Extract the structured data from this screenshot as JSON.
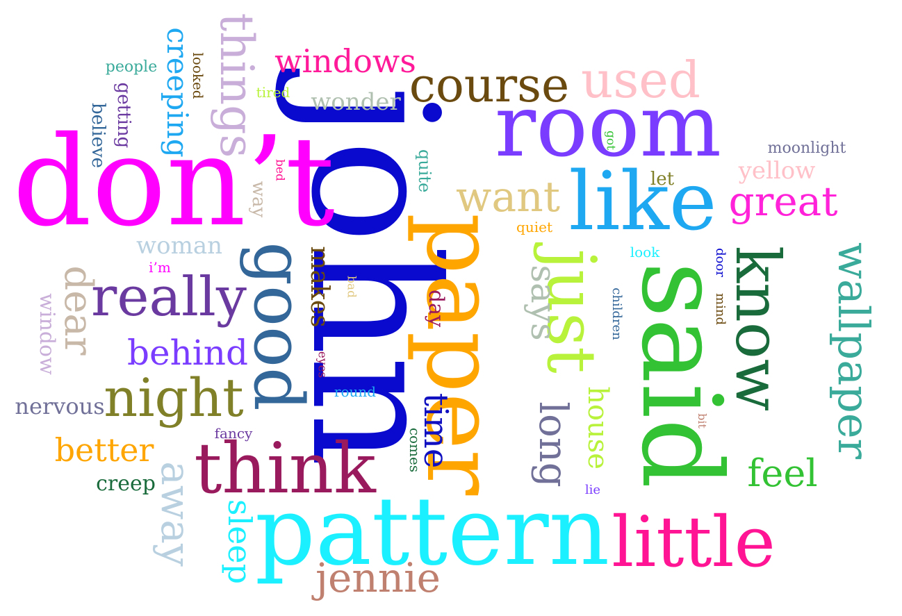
{
  "words": [
    {
      "text": "john",
      "color": "#0a0acf",
      "vertical": true
    },
    {
      "text": "don’t",
      "color": "#ff00ff",
      "vertical": false
    },
    {
      "text": "room",
      "color": "#7a3cff",
      "vertical": false
    },
    {
      "text": "pattern",
      "color": "#1af0ff",
      "vertical": false
    },
    {
      "text": "paper",
      "color": "#ffa500",
      "vertical": true
    },
    {
      "text": "said",
      "color": "#33c233",
      "vertical": true
    },
    {
      "text": "like",
      "color": "#1ea8f2",
      "vertical": false
    },
    {
      "text": "think",
      "color": "#9a1a5e",
      "vertical": false
    },
    {
      "text": "little",
      "color": "#ff1493",
      "vertical": false
    },
    {
      "text": "just",
      "color": "#b8f23a",
      "vertical": true
    },
    {
      "text": "good",
      "color": "#336699",
      "vertical": true
    },
    {
      "text": "know",
      "color": "#1a6b3c",
      "vertical": true
    },
    {
      "text": "night",
      "color": "#808028",
      "vertical": false
    },
    {
      "text": "really",
      "color": "#6b3aa0",
      "vertical": false
    },
    {
      "text": "course",
      "color": "#6b4a10",
      "vertical": false
    },
    {
      "text": "things",
      "color": "#c8aed8",
      "vertical": true
    },
    {
      "text": "used",
      "color": "#ffc0c8",
      "vertical": false
    },
    {
      "text": "wallpaper",
      "color": "#3aaa9a",
      "vertical": true
    },
    {
      "text": "want",
      "color": "#e0c880",
      "vertical": false
    },
    {
      "text": "great",
      "color": "#ff22d8",
      "vertical": false
    },
    {
      "text": "jennie",
      "color": "#c08070",
      "vertical": false
    },
    {
      "text": "away",
      "color": "#b8d0e0",
      "vertical": true
    },
    {
      "text": "long",
      "color": "#707098",
      "vertical": true
    },
    {
      "text": "says",
      "color": "#b0c0b0",
      "vertical": true
    },
    {
      "text": "time",
      "color": "#1010c0",
      "vertical": true
    },
    {
      "text": "behind",
      "color": "#7a3cff",
      "vertical": false
    },
    {
      "text": "dear",
      "color": "#c8b8a8",
      "vertical": true
    },
    {
      "text": "windows",
      "color": "#ff1a9a",
      "vertical": false
    },
    {
      "text": "better",
      "color": "#ffa500",
      "vertical": false
    },
    {
      "text": "feel",
      "color": "#33c233",
      "vertical": false
    },
    {
      "text": "sleep",
      "color": "#1af0ff",
      "vertical": true
    },
    {
      "text": "house",
      "color": "#b8f23a",
      "vertical": true
    },
    {
      "text": "creeping",
      "color": "#1ea8f2",
      "vertical": true
    },
    {
      "text": "makes",
      "color": "#6b4a10",
      "vertical": true
    },
    {
      "text": "woman",
      "color": "#b8d0e0",
      "vertical": false
    },
    {
      "text": "wonder",
      "color": "#b0c0b0",
      "vertical": false
    },
    {
      "text": "nervous",
      "color": "#707098",
      "vertical": false
    },
    {
      "text": "window",
      "color": "#c8aed8",
      "vertical": true
    },
    {
      "text": "yellow",
      "color": "#ffc0c8",
      "vertical": false
    },
    {
      "text": "creep",
      "color": "#1a6b3c",
      "vertical": false
    },
    {
      "text": "day",
      "color": "#9a1a5e",
      "vertical": true
    },
    {
      "text": "getting",
      "color": "#6b3aa0",
      "vertical": true
    },
    {
      "text": "believe",
      "color": "#336699",
      "vertical": true
    },
    {
      "text": "moonlight",
      "color": "#707098",
      "vertical": false
    },
    {
      "text": "way",
      "color": "#c8b8a8",
      "vertical": true
    },
    {
      "text": "let",
      "color": "#808028",
      "vertical": false
    },
    {
      "text": "quite",
      "color": "#3aaa9a",
      "vertical": true
    },
    {
      "text": "people",
      "color": "#3aaa9a",
      "vertical": false
    },
    {
      "text": "looked",
      "color": "#6b4a10",
      "vertical": true
    },
    {
      "text": "tired",
      "color": "#b8f23a",
      "vertical": false
    },
    {
      "text": "round",
      "color": "#1ea8f2",
      "vertical": false
    },
    {
      "text": "fancy",
      "color": "#6b3aa0",
      "vertical": false
    },
    {
      "text": "comes",
      "color": "#1a6b3c",
      "vertical": true
    },
    {
      "text": "quiet",
      "color": "#ffa500",
      "vertical": false
    },
    {
      "text": "look",
      "color": "#1af0ff",
      "vertical": false
    },
    {
      "text": "door",
      "color": "#0a0acf",
      "vertical": true
    },
    {
      "text": "mind",
      "color": "#6b4a10",
      "vertical": true
    },
    {
      "text": "children",
      "color": "#336699",
      "vertical": true
    },
    {
      "text": "i’m",
      "color": "#ff00ff",
      "vertical": false
    },
    {
      "text": "eyes",
      "color": "#9a1a5e",
      "vertical": true
    },
    {
      "text": "bad",
      "color": "#e0c880",
      "vertical": true
    },
    {
      "text": "bed",
      "color": "#ff1493",
      "vertical": true
    },
    {
      "text": "got",
      "color": "#33c233",
      "vertical": true
    },
    {
      "text": "bit",
      "color": "#c08070",
      "vertical": true
    },
    {
      "text": "lie",
      "color": "#7a3cff",
      "vertical": false
    }
  ]
}
